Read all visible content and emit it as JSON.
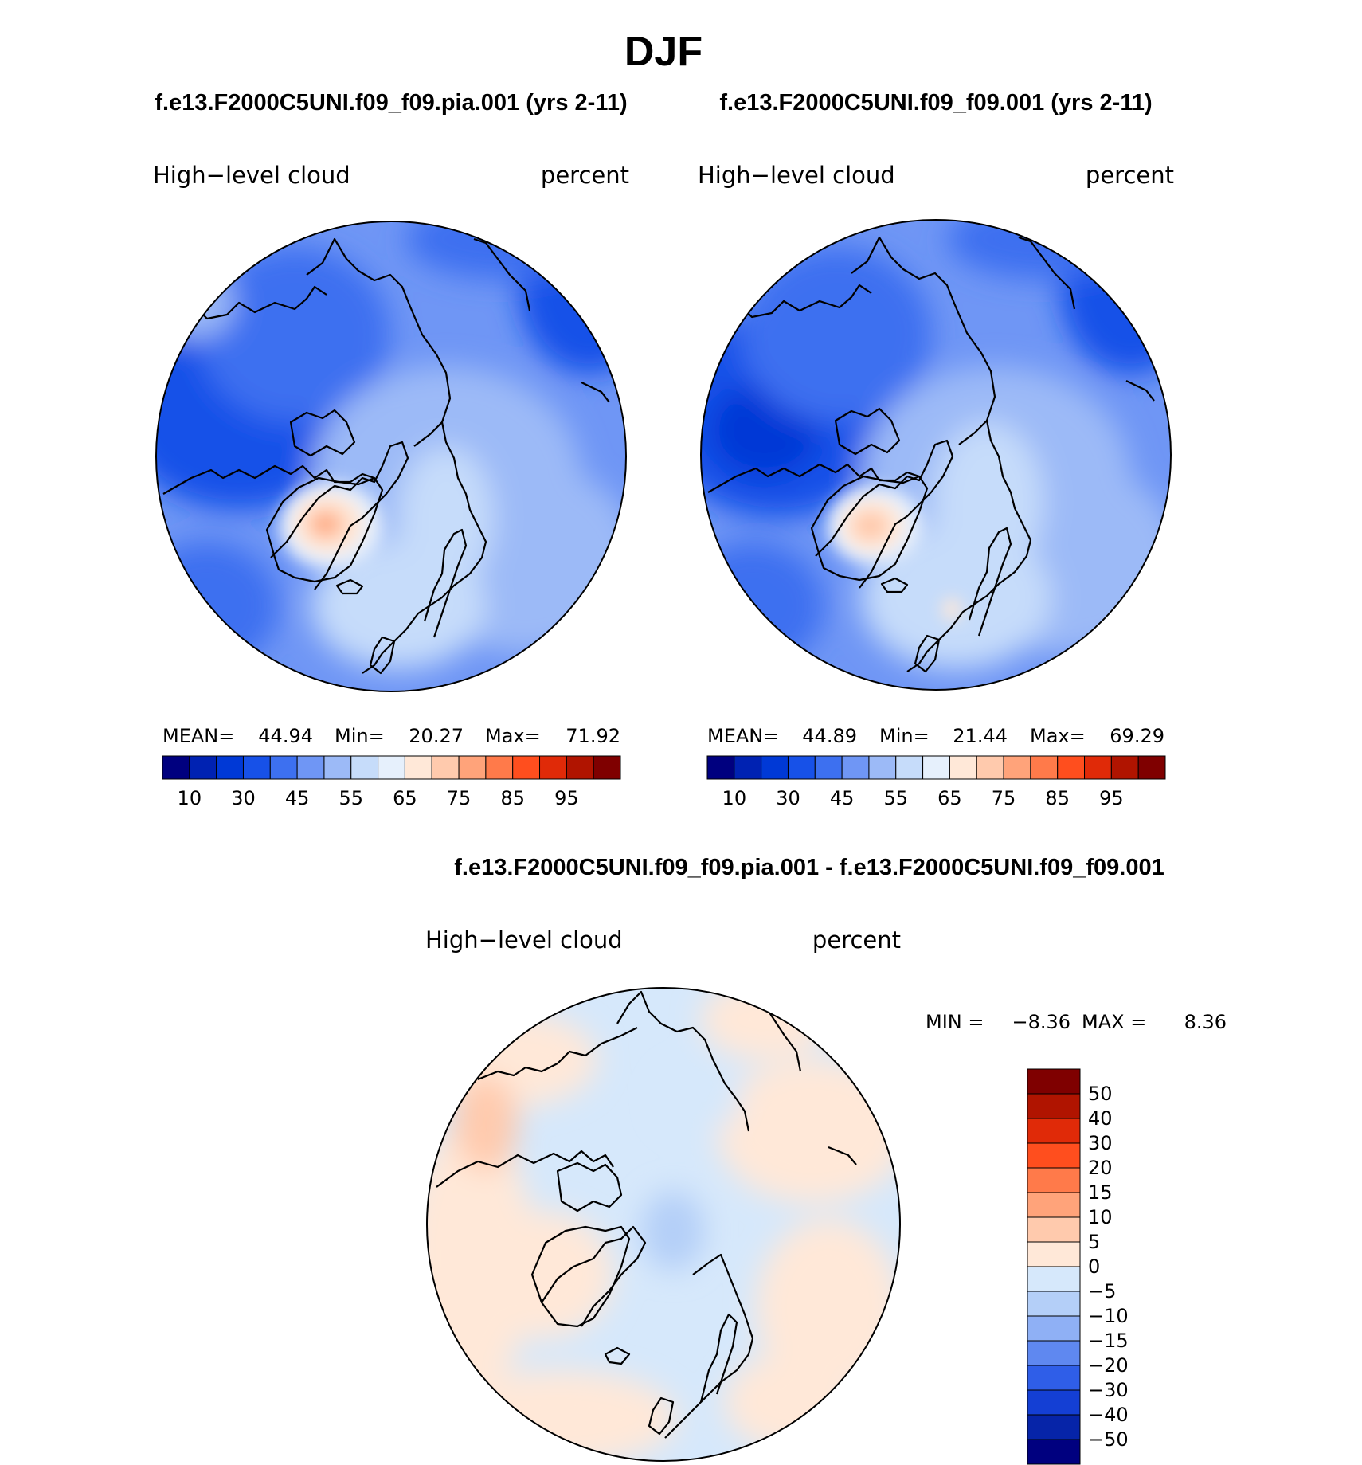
{
  "chart_data": {
    "type": "heatmap",
    "title": "DJF",
    "palette_abs": [
      "#00007f",
      "#0022b2",
      "#0039d6",
      "#1751e8",
      "#3d70f0",
      "#6f96f5",
      "#9cbaf7",
      "#c6dcfa",
      "#e6f0fc",
      "#ffe8d8",
      "#ffcaad",
      "#ffa37a",
      "#ff7a4a",
      "#ff4e1e",
      "#e02a08",
      "#b01400",
      "#7f0000"
    ],
    "panels": [
      {
        "header": "f.e13.F2000C5UNI.f09_f09.pia.001 (yrs 2-11)",
        "left_label": "High−level  cloud",
        "right_label": "percent",
        "stats": {
          "mean_label": "MEAN=",
          "mean": "44.94",
          "min_label": "Min=",
          "min": "20.27",
          "max_label": "Max=",
          "max": "71.92"
        },
        "colorbar_ticks": [
          "10",
          "30",
          "45",
          "55",
          "65",
          "75",
          "85",
          "95"
        ]
      },
      {
        "header": "f.e13.F2000C5UNI.f09_f09.001 (yrs 2-11)",
        "left_label": "High−level  cloud",
        "right_label": "percent",
        "stats": {
          "mean_label": "MEAN=",
          "mean": "44.89",
          "min_label": "Min=",
          "min": "21.44",
          "max_label": "Max=",
          "max": "69.29"
        },
        "colorbar_ticks": [
          "10",
          "30",
          "45",
          "55",
          "65",
          "75",
          "85",
          "95"
        ]
      }
    ],
    "difference": {
      "header": "f.e13.F2000C5UNI.f09_f09.pia.001 - f.e13.F2000C5UNI.f09_f09.001",
      "left_label": "High−level  cloud",
      "right_label": "percent",
      "stats": {
        "min_label": "MIN =",
        "min": "−8.36",
        "max_label": "MAX =",
        "max": "8.36"
      },
      "colorbar_levels": [
        "50",
        "40",
        "30",
        "20",
        "15",
        "10",
        "5",
        "0",
        "−5",
        "−10",
        "−15",
        "−20",
        "−30",
        "−40",
        "−50"
      ],
      "colorbar_colors": [
        "#7f0000",
        "#b01400",
        "#e02a08",
        "#ff4e1e",
        "#ff7a4a",
        "#ffa37a",
        "#ffcaad",
        "#ffe8d8",
        "#d6e8fb",
        "#b4cff8",
        "#8fb0f5",
        "#5f88f0",
        "#2f5ee8",
        "#143fd4",
        "#0624a8",
        "#00007f"
      ]
    }
  }
}
